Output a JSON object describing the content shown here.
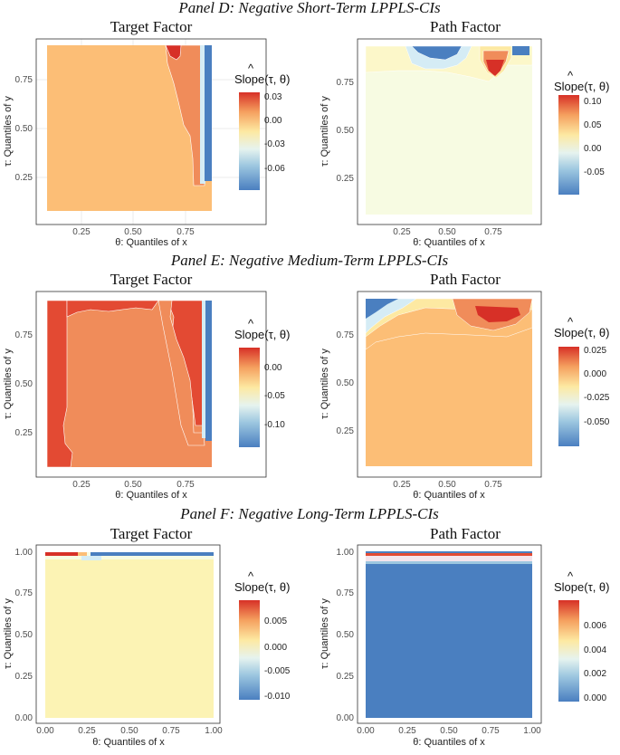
{
  "colors": {
    "dark_red": "#d73027",
    "red": "#e34a33",
    "orange": "#f08c5a",
    "light_orange": "#fcbe76",
    "yellow": "#fde9a2",
    "pale_yellow": "#fcf7c9",
    "very_pale": "#f7fbe2",
    "light_blue": "#d5ecf5",
    "mid_blue": "#9dc7e0",
    "blue": "#4a7fc0",
    "grid": "#ebebeb",
    "panel_border": "#333333"
  },
  "chart_data": [
    {
      "type": "heatmap",
      "panel": "Panel D: Negative Short-Term LPPLS-CIs",
      "title": "Target Factor",
      "xlabel": "θ: Quantiles of x",
      "ylabel": "τ: Quantiles of y",
      "xlim": [
        0.05,
        0.95
      ],
      "ylim": [
        0.05,
        0.95
      ],
      "xticks": [
        "0.25",
        "0.50",
        "0.75"
      ],
      "yticks": [
        "0.25",
        "0.50",
        "0.75"
      ],
      "legend_title": "Slope(τ, θ)",
      "legend_ticks": [
        "0.03",
        "0.00",
        "-0.03",
        "-0.06"
      ],
      "legend_range": [
        -0.08,
        0.04
      ],
      "summary": "Mostly slightly positive (~0.005) across grid; positive ridge near θ≈0.8 for τ>0.4; strong negative (~-0.08) at θ>0.9"
    },
    {
      "type": "heatmap",
      "panel": "Panel D: Negative Short-Term LPPLS-CIs",
      "title": "Path Factor",
      "xlabel": "θ: Quantiles of x",
      "ylabel": "τ: Quantiles of y",
      "xlim": [
        0.05,
        0.95
      ],
      "ylim": [
        0.05,
        0.95
      ],
      "xticks": [
        "0.25",
        "0.50",
        "0.75"
      ],
      "yticks": [
        "0.25",
        "0.50",
        "0.75"
      ],
      "legend_title": "Slope(τ, θ)",
      "legend_ticks": [
        "0.10",
        "0.05",
        "0.00",
        "-0.05"
      ],
      "legend_range": [
        -0.08,
        0.12
      ],
      "summary": "Near zero almost everywhere; positive peak (~0.10) near θ≈0.75, τ≈0.85; negative patches near top for θ 0.35–0.6"
    },
    {
      "type": "heatmap",
      "panel": "Panel E: Negative Medium-Term LPPLS-CIs",
      "title": "Target Factor",
      "xlabel": "θ: Quantiles of x",
      "ylabel": "τ: Quantiles of y",
      "xlim": [
        0.05,
        0.95
      ],
      "ylim": [
        0.05,
        0.95
      ],
      "xticks": [
        "0.25",
        "0.50",
        "0.75"
      ],
      "yticks": [
        "0.25",
        "0.50",
        "0.75"
      ],
      "legend_title": "Slope(τ, θ)",
      "legend_ticks": [
        "0.00",
        "-0.05",
        "-0.10"
      ],
      "legend_range": [
        -0.14,
        0.03
      ],
      "summary": "Mostly ~0.01; higher (~0.02) for θ<0.15 and near θ≈0.85; strong negative (~-0.14) at θ>0.9"
    },
    {
      "type": "heatmap",
      "panel": "Panel E: Negative Medium-Term LPPLS-CIs",
      "title": "Path Factor",
      "xlabel": "θ: Quantiles of x",
      "ylabel": "τ: Quantiles of y",
      "xlim": [
        0.05,
        0.95
      ],
      "ylim": [
        0.05,
        0.95
      ],
      "xticks": [
        "0.25",
        "0.50",
        "0.75"
      ],
      "yticks": [
        "0.25",
        "0.50",
        "0.75"
      ],
      "legend_title": "Slope(τ, θ)",
      "legend_ticks": [
        "0.025",
        "0.000",
        "-0.025",
        "-0.050"
      ],
      "legend_range": [
        -0.065,
        0.035
      ],
      "summary": "Mostly slightly positive (~0.01); peak (~0.03) near θ≈0.75, τ≈0.9; negative in top-left corner"
    },
    {
      "type": "heatmap",
      "panel": "Panel F: Negative Long-Term LPPLS-CIs",
      "title": "Target Factor",
      "xlabel": "θ: Quantiles of x",
      "ylabel": "τ: Quantiles of y",
      "xlim": [
        0.0,
        1.0
      ],
      "ylim": [
        0.0,
        1.0
      ],
      "xticks": [
        "0.00",
        "0.25",
        "0.50",
        "0.75",
        "1.00"
      ],
      "yticks": [
        "0.00",
        "0.25",
        "0.50",
        "0.75",
        "1.00"
      ],
      "legend_title": "Slope(τ, θ)",
      "legend_ticks": [
        "0.005",
        "0.000",
        "-0.005",
        "-0.010"
      ],
      "legend_range": [
        -0.012,
        0.009
      ],
      "summary": "Flat ~0.0005 almost everywhere; small positive at τ≈0.98 for θ<0.2; negative strip at τ≈0.98 for θ>0.3"
    },
    {
      "type": "heatmap",
      "panel": "Panel F: Negative Long-Term LPPLS-CIs",
      "title": "Path Factor",
      "xlabel": "θ: Quantiles of x",
      "ylabel": "τ: Quantiles of y",
      "xlim": [
        0.0,
        1.0
      ],
      "ylim": [
        0.0,
        1.0
      ],
      "xticks": [
        "0.00",
        "0.25",
        "0.50",
        "0.75",
        "1.00"
      ],
      "yticks": [
        "0.00",
        "0.25",
        "0.50",
        "0.75",
        "1.00"
      ],
      "legend_title": "Slope(τ, θ)",
      "legend_ticks": [
        "0.006",
        "0.004",
        "0.002",
        "0.000"
      ],
      "legend_range": [
        -0.0005,
        0.0078
      ],
      "summary": "Near 0 (~0.0002) everywhere; thin positive band near τ≈0.97"
    }
  ]
}
